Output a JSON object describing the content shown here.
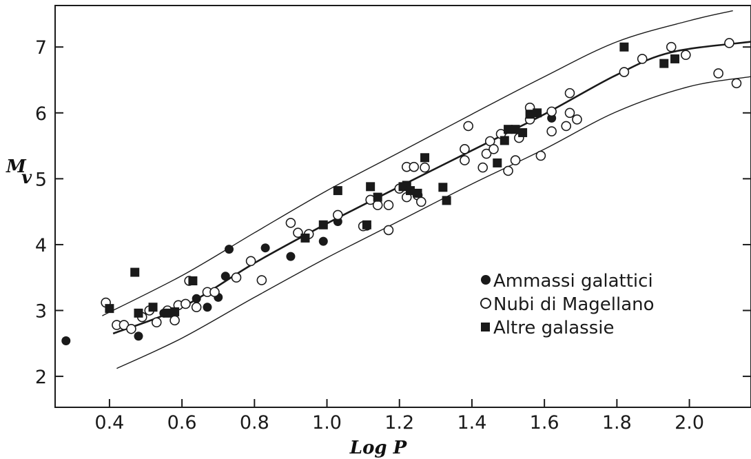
{
  "chart_data": {
    "type": "scatter",
    "xlabel": "Log P",
    "ylabel_main": "M",
    "ylabel_sub": "v",
    "xlim": [
      0.25,
      2.17
    ],
    "ylim": [
      1.53,
      7.63
    ],
    "x_ticks": [
      0.4,
      0.6,
      0.8,
      1.0,
      1.2,
      1.4,
      1.6,
      1.8,
      2.0
    ],
    "x_tick_labels": [
      "0.4",
      "0.6",
      "0.8",
      "1.0",
      "1.2",
      "1.4",
      "1.6",
      "1.8",
      "2.0"
    ],
    "y_ticks": [
      2,
      3,
      4,
      5,
      6,
      7
    ],
    "y_tick_labels": [
      "2",
      "3",
      "4",
      "5",
      "6",
      "7"
    ],
    "grid": false,
    "legend_position": "right",
    "series": [
      {
        "name": "Ammassi galattici",
        "marker": "filled-circle",
        "points": [
          [
            0.28,
            2.54
          ],
          [
            0.48,
            2.61
          ],
          [
            0.55,
            2.96
          ],
          [
            0.64,
            3.18
          ],
          [
            0.67,
            3.05
          ],
          [
            0.7,
            3.2
          ],
          [
            0.72,
            3.52
          ],
          [
            0.73,
            3.93
          ],
          [
            0.83,
            3.95
          ],
          [
            0.9,
            3.82
          ],
          [
            0.99,
            4.05
          ],
          [
            1.03,
            4.35
          ],
          [
            1.11,
            4.28
          ],
          [
            1.62,
            5.92
          ]
        ]
      },
      {
        "name": "Nubi di Magellano",
        "marker": "open-circle",
        "points": [
          [
            0.39,
            3.12
          ],
          [
            0.42,
            2.78
          ],
          [
            0.44,
            2.78
          ],
          [
            0.46,
            2.72
          ],
          [
            0.49,
            2.9
          ],
          [
            0.51,
            3.0
          ],
          [
            0.53,
            2.82
          ],
          [
            0.56,
            3.0
          ],
          [
            0.58,
            2.85
          ],
          [
            0.59,
            3.08
          ],
          [
            0.61,
            3.1
          ],
          [
            0.62,
            3.45
          ],
          [
            0.64,
            3.05
          ],
          [
            0.67,
            3.28
          ],
          [
            0.69,
            3.28
          ],
          [
            0.75,
            3.5
          ],
          [
            0.79,
            3.75
          ],
          [
            0.82,
            3.46
          ],
          [
            0.9,
            4.33
          ],
          [
            0.92,
            4.18
          ],
          [
            0.95,
            4.16
          ],
          [
            1.03,
            4.45
          ],
          [
            1.1,
            4.28
          ],
          [
            1.12,
            4.68
          ],
          [
            1.14,
            4.6
          ],
          [
            1.17,
            4.22
          ],
          [
            1.17,
            4.6
          ],
          [
            1.2,
            4.85
          ],
          [
            1.22,
            5.18
          ],
          [
            1.22,
            4.72
          ],
          [
            1.24,
            5.18
          ],
          [
            1.25,
            4.75
          ],
          [
            1.26,
            4.65
          ],
          [
            1.27,
            5.17
          ],
          [
            1.38,
            5.28
          ],
          [
            1.38,
            5.45
          ],
          [
            1.39,
            5.8
          ],
          [
            1.43,
            5.17
          ],
          [
            1.44,
            5.38
          ],
          [
            1.45,
            5.57
          ],
          [
            1.46,
            5.45
          ],
          [
            1.48,
            5.68
          ],
          [
            1.5,
            5.12
          ],
          [
            1.52,
            5.28
          ],
          [
            1.53,
            5.62
          ],
          [
            1.56,
            5.9
          ],
          [
            1.56,
            6.08
          ],
          [
            1.59,
            5.35
          ],
          [
            1.62,
            5.72
          ],
          [
            1.62,
            6.02
          ],
          [
            1.66,
            5.8
          ],
          [
            1.67,
            6.3
          ],
          [
            1.67,
            6.0
          ],
          [
            1.69,
            5.9
          ],
          [
            1.82,
            6.62
          ],
          [
            1.87,
            6.82
          ],
          [
            1.95,
            7.0
          ],
          [
            1.99,
            6.88
          ],
          [
            2.08,
            6.6
          ],
          [
            2.11,
            7.06
          ],
          [
            2.13,
            6.45
          ]
        ]
      },
      {
        "name": "Altre galassie",
        "marker": "filled-square",
        "points": [
          [
            0.4,
            3.03
          ],
          [
            0.47,
            3.58
          ],
          [
            0.48,
            2.96
          ],
          [
            0.52,
            3.05
          ],
          [
            0.56,
            2.96
          ],
          [
            0.58,
            2.98
          ],
          [
            0.63,
            3.45
          ],
          [
            0.94,
            4.1
          ],
          [
            0.99,
            4.3
          ],
          [
            1.03,
            4.82
          ],
          [
            1.11,
            4.3
          ],
          [
            1.12,
            4.88
          ],
          [
            1.14,
            4.72
          ],
          [
            1.21,
            4.88
          ],
          [
            1.22,
            4.9
          ],
          [
            1.23,
            4.82
          ],
          [
            1.25,
            4.78
          ],
          [
            1.27,
            5.32
          ],
          [
            1.32,
            4.87
          ],
          [
            1.33,
            4.67
          ],
          [
            1.47,
            5.24
          ],
          [
            1.49,
            5.58
          ],
          [
            1.5,
            5.75
          ],
          [
            1.52,
            5.75
          ],
          [
            1.54,
            5.7
          ],
          [
            1.56,
            5.98
          ],
          [
            1.58,
            6.0
          ],
          [
            1.82,
            7.0
          ],
          [
            1.93,
            6.75
          ],
          [
            1.96,
            6.82
          ]
        ]
      }
    ],
    "curves": {
      "mean": [
        [
          0.41,
          2.65
        ],
        [
          0.6,
          3.05
        ],
        [
          0.8,
          3.72
        ],
        [
          1.0,
          4.32
        ],
        [
          1.2,
          4.88
        ],
        [
          1.4,
          5.43
        ],
        [
          1.6,
          5.98
        ],
        [
          1.8,
          6.58
        ],
        [
          1.95,
          6.92
        ],
        [
          2.17,
          7.08
        ]
      ],
      "upper": [
        [
          0.38,
          2.92
        ],
        [
          0.6,
          3.53
        ],
        [
          0.8,
          4.18
        ],
        [
          1.0,
          4.82
        ],
        [
          1.2,
          5.4
        ],
        [
          1.4,
          5.98
        ],
        [
          1.6,
          6.55
        ],
        [
          1.8,
          7.08
        ],
        [
          2.0,
          7.4
        ],
        [
          2.12,
          7.55
        ]
      ],
      "lower": [
        [
          0.42,
          2.12
        ],
        [
          0.6,
          2.58
        ],
        [
          0.8,
          3.2
        ],
        [
          1.0,
          3.8
        ],
        [
          1.2,
          4.36
        ],
        [
          1.4,
          4.92
        ],
        [
          1.6,
          5.45
        ],
        [
          1.8,
          6.02
        ],
        [
          2.0,
          6.4
        ],
        [
          2.17,
          6.55
        ]
      ]
    }
  }
}
